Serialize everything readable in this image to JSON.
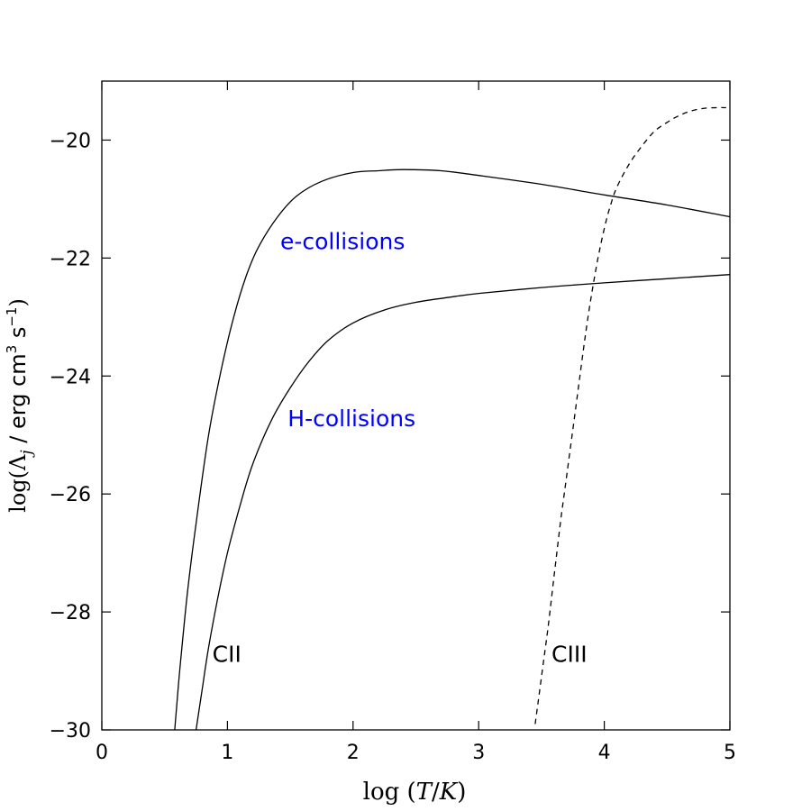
{
  "chart_data": {
    "type": "line",
    "xlabel": "log (T/K)",
    "ylabel": "log(Λj / erg cm3 s−1)",
    "xlim": [
      0,
      5
    ],
    "ylim": [
      -30,
      -19
    ],
    "x_ticks": [
      0,
      1,
      2,
      3,
      4,
      5
    ],
    "y_ticks": [
      -30,
      -28,
      -26,
      -24,
      -22,
      -20
    ],
    "x_tick_labels": [
      "0",
      "1",
      "2",
      "3",
      "4",
      "5"
    ],
    "y_tick_labels": [
      "−30",
      "−28",
      "−26",
      "−24",
      "−22",
      "−20"
    ],
    "grid": false,
    "series": [
      {
        "style": "solid",
        "x": [
          0.58,
          0.62,
          0.68,
          0.75,
          0.85,
          0.95,
          1.05,
          1.15,
          1.25,
          1.4,
          1.55,
          1.75,
          2.0,
          2.2,
          2.4,
          2.7,
          3.0,
          3.5,
          4.0,
          4.5,
          5.0
        ],
        "y": [
          -30.0,
          -29.0,
          -27.7,
          -26.5,
          -25.0,
          -23.9,
          -23.0,
          -22.3,
          -21.8,
          -21.3,
          -20.95,
          -20.7,
          -20.55,
          -20.52,
          -20.5,
          -20.52,
          -20.6,
          -20.75,
          -20.93,
          -21.1,
          -21.3
        ]
      },
      {
        "style": "solid",
        "x": [
          0.75,
          0.8,
          0.85,
          0.92,
          1.0,
          1.1,
          1.2,
          1.35,
          1.5,
          1.65,
          1.8,
          2.0,
          2.25,
          2.5,
          2.75,
          3.0,
          3.5,
          4.0,
          4.5,
          5.0
        ],
        "y": [
          -30.0,
          -29.3,
          -28.6,
          -27.8,
          -27.0,
          -26.2,
          -25.5,
          -24.75,
          -24.2,
          -23.75,
          -23.4,
          -23.1,
          -22.88,
          -22.75,
          -22.67,
          -22.6,
          -22.5,
          -22.42,
          -22.35,
          -22.28
        ]
      },
      {
        "style": "dashed",
        "x": [
          3.45,
          3.5,
          3.55,
          3.6,
          3.65,
          3.7,
          3.75,
          3.8,
          3.85,
          3.9,
          3.95,
          4.0,
          4.05,
          4.1,
          4.2,
          4.3,
          4.4,
          4.5,
          4.6,
          4.7,
          4.8,
          4.9,
          4.97
        ],
        "y": [
          -29.9,
          -29.1,
          -28.3,
          -27.4,
          -26.5,
          -25.7,
          -24.9,
          -24.1,
          -23.3,
          -22.6,
          -22.0,
          -21.5,
          -21.1,
          -20.8,
          -20.4,
          -20.1,
          -19.85,
          -19.7,
          -19.58,
          -19.5,
          -19.46,
          -19.45,
          -19.45
        ]
      }
    ],
    "annotations": [
      {
        "text": "e-collisions",
        "x": 1.42,
        "y": -21.85,
        "color": "#0000ff"
      },
      {
        "text": "H-collisions",
        "x": 1.48,
        "y": -24.85,
        "color": "#0000ff"
      },
      {
        "text": "CII",
        "x": 0.88,
        "y": -28.85,
        "color": "#000000"
      },
      {
        "text": "CIII",
        "x": 3.58,
        "y": -28.85,
        "color": "#000000"
      }
    ]
  }
}
